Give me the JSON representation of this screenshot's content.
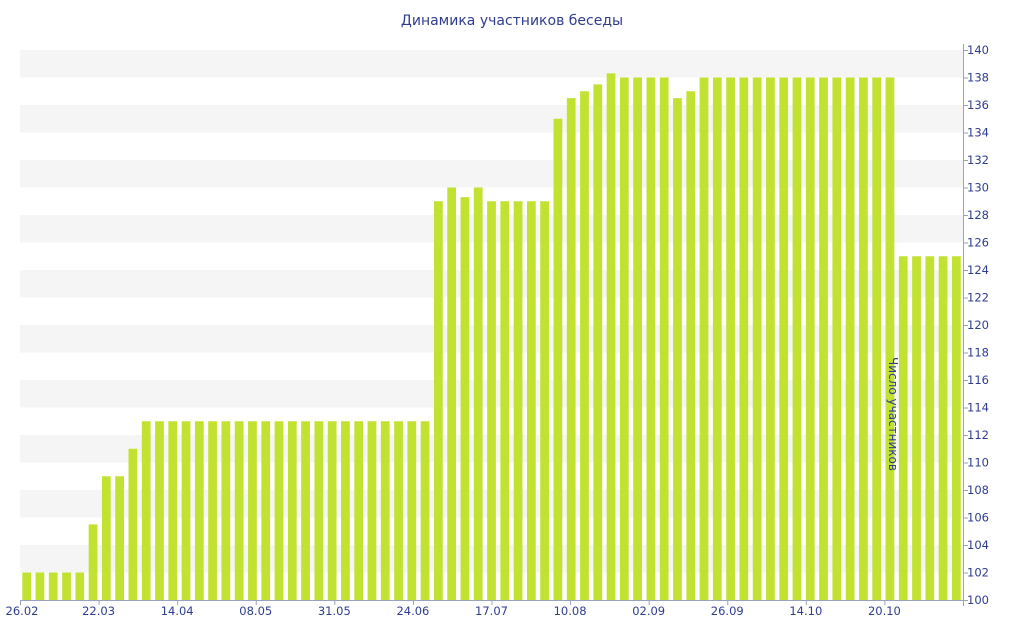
{
  "chart_data": {
    "type": "bar",
    "title": "Динамика участников беседы",
    "xlabel": "",
    "ylabel": "Число участников",
    "ylim": [
      100,
      140
    ],
    "ytick_step": 2,
    "y_axis_side": "right",
    "grid": "alternating horizontal bands",
    "bar_color": "#c2e232",
    "band_color": "#f5f5f5",
    "text_color": "#2f3d8f",
    "x_tick_labels": [
      "26.02",
      "22.03",
      "14.04",
      "08.05",
      "31.05",
      "24.06",
      "17.07",
      "10.08",
      "02.09",
      "26.09",
      "14.10",
      "20.10"
    ],
    "values": [
      102,
      102,
      102,
      102,
      102,
      105.5,
      109,
      109,
      111,
      113,
      113,
      113,
      113,
      113,
      113,
      113,
      113,
      113,
      113,
      113,
      113,
      113,
      113,
      113,
      113,
      113,
      113,
      113,
      113,
      113,
      113,
      129,
      130,
      129.3,
      130,
      129,
      129,
      129,
      129,
      129,
      135,
      136.5,
      137,
      137.5,
      138.3,
      138,
      138,
      138,
      138,
      136.5,
      137,
      138,
      138,
      138,
      138,
      138,
      138,
      138,
      138,
      138,
      138,
      138,
      138,
      138,
      138,
      138,
      125,
      125,
      125,
      125,
      125
    ]
  }
}
